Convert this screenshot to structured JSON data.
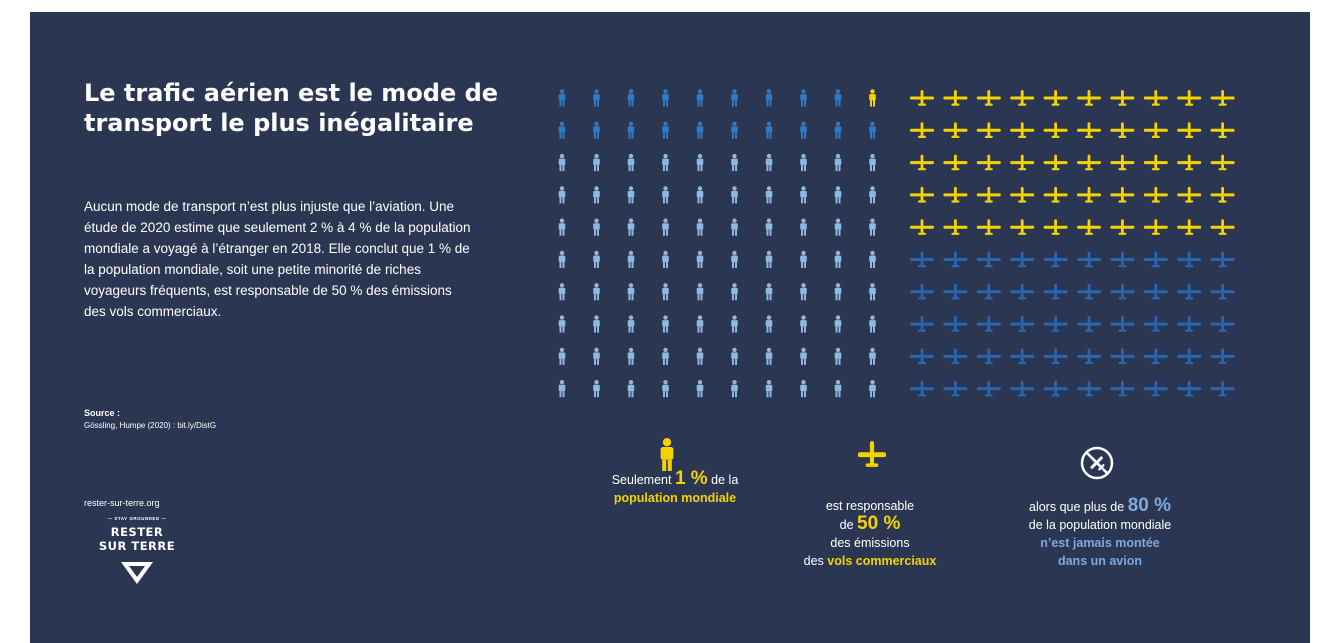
{
  "title": "Le trafic aérien est le mode de transport le plus inégalitaire",
  "intro": "Aucun mode de transport n’est plus injuste que l’aviation. Une étude de 2020 estime que seulement 2 % à 4 % de la population mondiale a voyagé à l’étranger en 2018. Elle conclut que 1 % de la population mondiale, soit une petite minorité de riches voyageurs fréquents, est responsable de 50 % des émissions des vols commerciaux.",
  "source": {
    "label": "Source :",
    "text": "Gössling, Humpe (2020) : bit.ly/DistG"
  },
  "brand": {
    "site": "rester-sur-terre.org",
    "tagline": "STAY GROUNDED",
    "line1": "RESTER",
    "line2": "SUR TERRE"
  },
  "colors": {
    "background": "#2b3652",
    "yellow": "#f5d300",
    "light_blue": "#8fb8e0",
    "medium_blue": "#2f78c2",
    "dark_blue": "#2a66b0"
  },
  "icons": {
    "person": "person-icon",
    "plane": "airplane-icon",
    "no_plane": "no-plane-icon"
  },
  "people_grid": {
    "rows": 10,
    "cols": 10,
    "highlighted_share_percent": 1,
    "flyer_share_percent": 20,
    "non_flyer_share_percent": 80
  },
  "planes_grid": {
    "rows": 10,
    "cols": 10,
    "highlighted_share_percent": 50
  },
  "captions": {
    "population": {
      "pre": "Seulement ",
      "num": "1 %",
      "post": " de la",
      "hl": "population mondiale"
    },
    "emissions": {
      "l1": "est responsable",
      "l2_pre": "de ",
      "l2_num": "50 %",
      "l3": "des émissions",
      "l4_pre": "des ",
      "l4_hl": "vols commerciaux"
    },
    "never_flown": {
      "l1_pre": "alors que plus de ",
      "l1_num": "80 %",
      "l2": "de la population mondiale",
      "l3": "n’est jamais montée",
      "l4": "dans un avion"
    }
  }
}
